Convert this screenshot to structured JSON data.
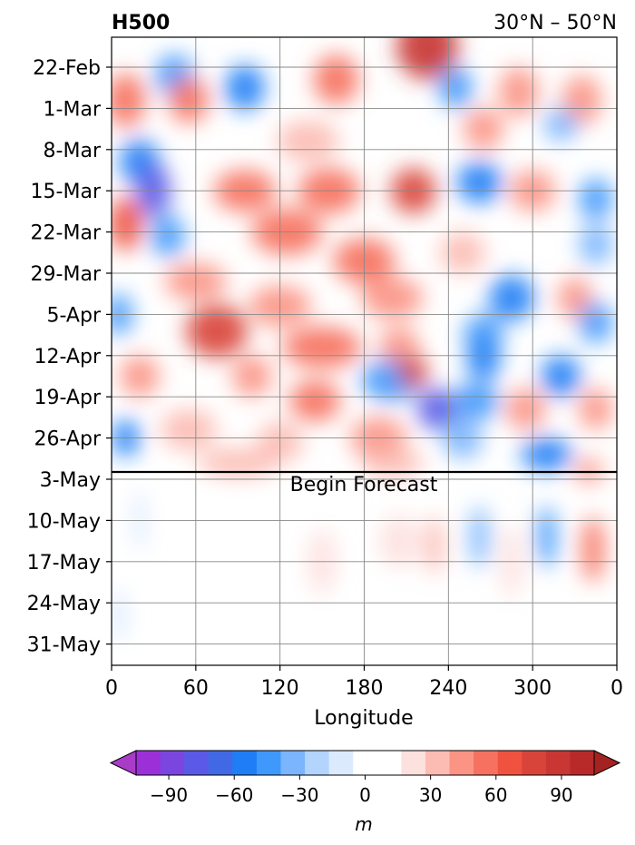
{
  "chart_data": {
    "type": "heatmap",
    "title": "H500",
    "subtitle": "30°N – 50°N",
    "xlabel": "Longitude",
    "ylabel": "",
    "x_ticks": [
      "0",
      "60",
      "120",
      "180",
      "240",
      "300",
      "0"
    ],
    "x_tick_values": [
      0,
      60,
      120,
      180,
      240,
      300,
      360
    ],
    "xlim": [
      0,
      360
    ],
    "y_ticks": [
      "22-Feb",
      "1-Mar",
      "8-Mar",
      "15-Mar",
      "22-Mar",
      "29-Mar",
      "5-Apr",
      "12-Apr",
      "19-Apr",
      "26-Apr",
      "3-May",
      "10-May",
      "17-May",
      "24-May",
      "31-May"
    ],
    "y_axis_direction": "time increasing downward",
    "grid": true,
    "annotation": "Begin Forecast",
    "forecast_start": "1-May",
    "colorbar": {
      "label": "m",
      "ticks": [
        "−90",
        "−60",
        "−30",
        "0",
        "30",
        "60",
        "90"
      ],
      "tick_values": [
        -90,
        -60,
        -30,
        0,
        30,
        60,
        90
      ],
      "range": [
        -105,
        105
      ],
      "extend": "both",
      "colors": [
        "#9b30d9",
        "#7b45e0",
        "#5a5ae6",
        "#4169e6",
        "#1f7ef5",
        "#3f98fb",
        "#7bb5fd",
        "#b2d4fd",
        "#dceafe",
        "#ffffff",
        "#ffffff",
        "#fde1df",
        "#fcbcb3",
        "#fb9484",
        "#f67160",
        "#ef5340",
        "#d9443a",
        "#c83733",
        "#b82a2a"
      ],
      "under_color": "#a83cc8",
      "over_color": "#a52222"
    }
  }
}
